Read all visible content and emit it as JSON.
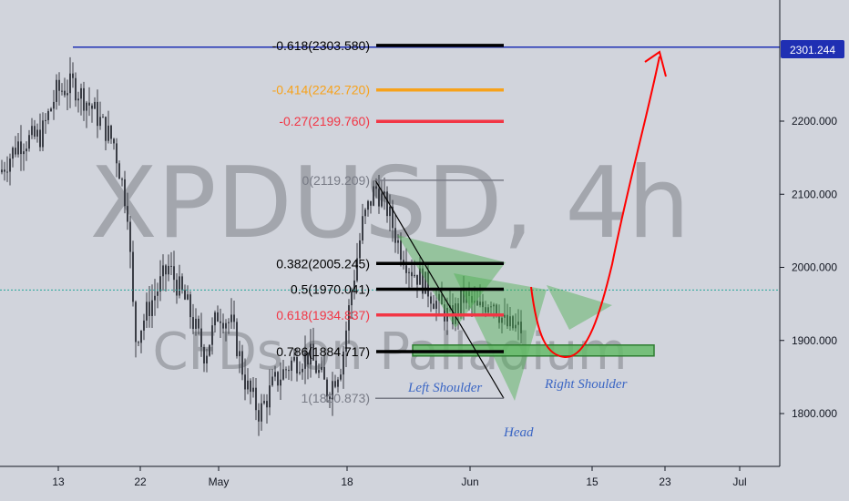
{
  "chart_data": {
    "type": "candlestick",
    "symbol_watermark": "XPDUSD, 4h",
    "sub_watermark": "CFDs on Palladium",
    "current_price": "2301.244",
    "price_axis": {
      "ticks": [
        "2200.000",
        "2100.000",
        "2000.000",
        "1900.000",
        "1800.000"
      ],
      "tick_values": [
        2200,
        2100,
        2000,
        1900,
        1800
      ]
    },
    "time_axis": {
      "ticks": [
        "13",
        "22",
        "May",
        "18",
        "Jun",
        "15",
        "23",
        "Jul"
      ]
    },
    "fib_levels": [
      {
        "label": "-0.618(2303.580)",
        "color": "#000000",
        "value": 2303.58
      },
      {
        "label": "-0.414(2242.720)",
        "color": "#f7a21b",
        "value": 2242.72
      },
      {
        "label": "-0.27(2199.760)",
        "color": "#f23645",
        "value": 2199.76
      },
      {
        "label": "0(2119.209)",
        "color": "#787b86",
        "value": 2119.209
      },
      {
        "label": "0.382(2005.245)",
        "color": "#000000",
        "value": 2005.245
      },
      {
        "label": "0.5(1970.041)",
        "color": "#000000",
        "value": 1970.041
      },
      {
        "label": "0.618(1934.837)",
        "color": "#f23645",
        "value": 1934.837
      },
      {
        "label": "0.786(1884.717)",
        "color": "#000000",
        "value": 1884.717
      },
      {
        "label": "1(1820.873)",
        "color": "#787b86",
        "value": 1820.873
      }
    ],
    "annotations": {
      "left_shoulder": "Left Shoulder",
      "right_shoulder": "Right Shoulder",
      "head": "Head"
    },
    "resistance_line_value": 2301.244,
    "dotted_last_price_value": 1969,
    "support_zone_value": 1885,
    "colors": {
      "background": "#d1d4dc",
      "candle": "#3a3d45",
      "resistance": "#1f2fb3",
      "last_price_dotted": "#26a69a",
      "projection": "#ff0000",
      "pattern_fill": "#4caf50",
      "annotation_text": "#3b66c4"
    }
  }
}
